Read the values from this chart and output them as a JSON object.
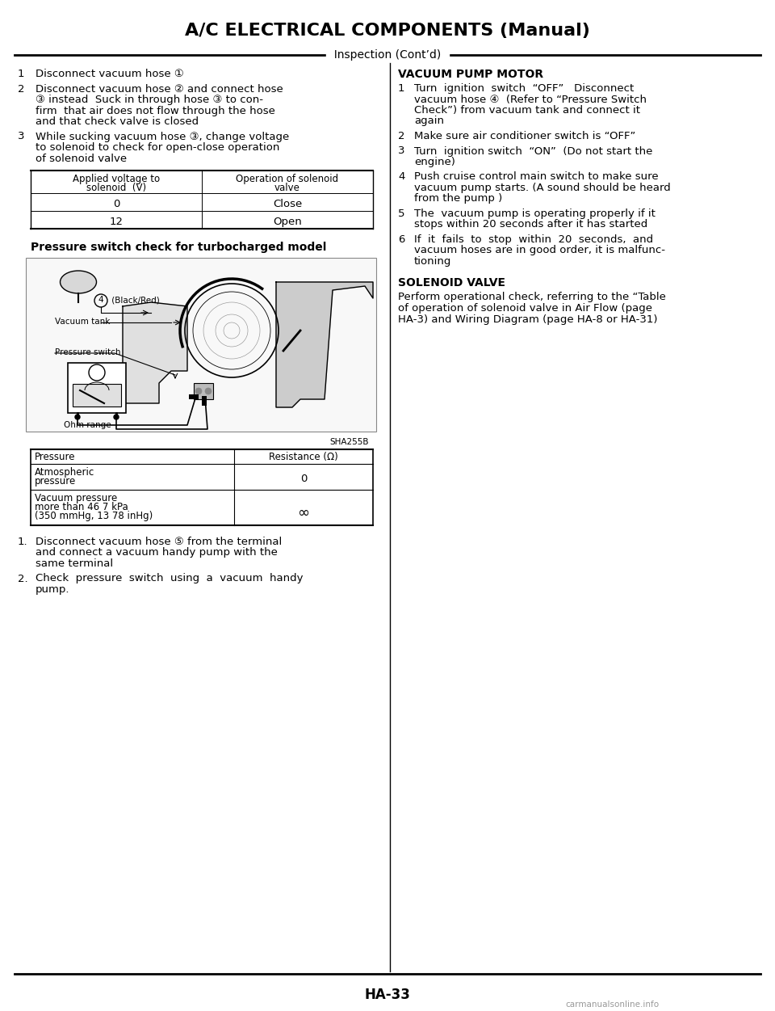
{
  "title": "A/C ELECTRICAL COMPONENTS (Manual)",
  "section": "Inspection (Cont’d)",
  "page_num": "HA-33",
  "watermark": "carmanualsonline.info",
  "bg_color": "#ffffff",
  "left_items": [
    {
      "num": "1",
      "lines": [
        "Disconnect vacuum hose ①"
      ]
    },
    {
      "num": "2",
      "lines": [
        "Disconnect vacuum hose ② and connect hose",
        "③ instead  Suck in through hose ③ to con-",
        "firm  that air does not flow through the hose",
        "and that check valve is closed"
      ]
    },
    {
      "num": "3",
      "lines": [
        "While sucking vacuum hose ③, change voltage",
        "to solenoid to check for open-close operation",
        "of solenoid valve"
      ]
    }
  ],
  "table1_header": [
    "Applied voltage to\nsolenoid  (V)",
    "Operation of solenoid\nvalve"
  ],
  "table1_rows": [
    [
      "0",
      "Close"
    ],
    [
      "12",
      "Open"
    ]
  ],
  "pressure_title": "Pressure switch check for turbocharged model",
  "figure_label": "SHA255B",
  "table2_header": [
    "Pressure",
    "Resistance (Ω)"
  ],
  "table2_rows": [
    [
      "Atmospheric\npressure",
      "0"
    ],
    [
      "Vacuum pressure\nmore than 46 7 kPa\n(350 mmHg, 13 78 inHg)",
      "∞"
    ]
  ],
  "bottom_items": [
    {
      "num": "1.",
      "lines": [
        "Disconnect vacuum hose ⑤ from the terminal",
        "and connect a vacuum handy pump with the",
        "same terminal"
      ]
    },
    {
      "num": "2.",
      "lines": [
        "Check  pressure  switch  using  a  vacuum  handy",
        "pump."
      ]
    }
  ],
  "vacuum_title": "VACUUM PUMP MOTOR",
  "vacuum_items": [
    {
      "num": "1",
      "lines": [
        "Turn  ignition  switch  “OFF”   Disconnect",
        "vacuum hose ④  (Refer to “Pressure Switch",
        "Check”) from vacuum tank and connect it",
        "again"
      ]
    },
    {
      "num": "2",
      "lines": [
        "Make sure air conditioner switch is “OFF”"
      ]
    },
    {
      "num": "3",
      "lines": [
        "Turn  ignition switch  “ON”  (Do not start the",
        "engine)"
      ]
    },
    {
      "num": "4",
      "lines": [
        "Push cruise control main switch to make sure",
        "vacuum pump starts. (A sound should be heard",
        "from the pump )"
      ]
    },
    {
      "num": "5",
      "lines": [
        "The  vacuum pump is operating properly if it",
        "stops within 20 seconds after it has started"
      ]
    },
    {
      "num": "6",
      "lines": [
        "If  it  fails  to  stop  within  20  seconds,  and",
        "vacuum hoses are in good order, it is malfunc-",
        "tioning"
      ]
    }
  ],
  "solenoid_title": "SOLENOID VALVE",
  "solenoid_lines": [
    "Perform operational check, referring to the “Table",
    "of operation of solenoid valve in Air Flow (page",
    "HA-3) and Wiring Diagram (page HA-8 or HA-31)"
  ]
}
